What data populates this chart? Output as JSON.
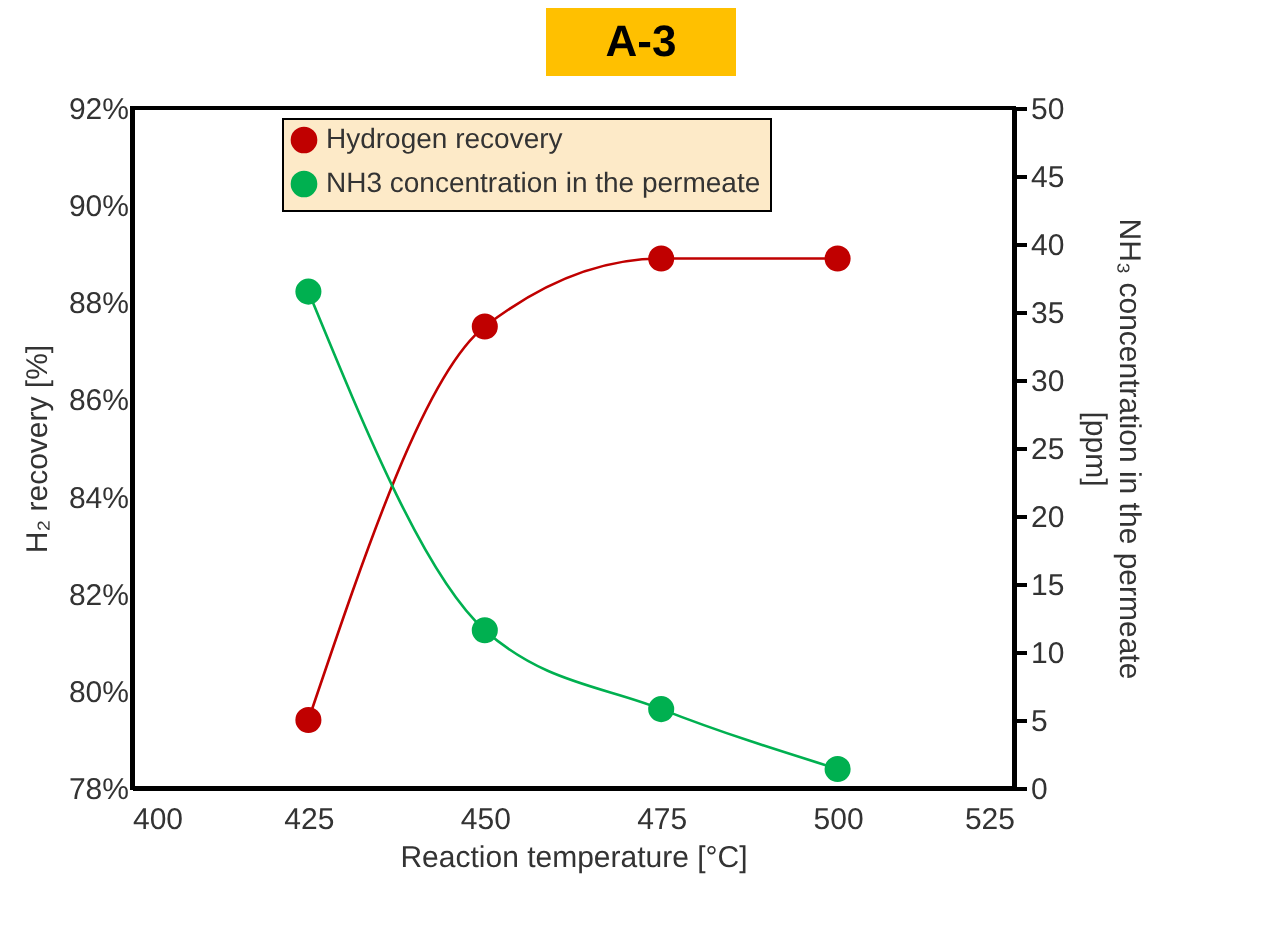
{
  "chart_data": {
    "type": "line",
    "title": "A-3",
    "xlabel": "Reaction temperature [°C]",
    "ylabel": "H₂ recovery [%]",
    "y2label": "NH₃ concentration in the permeate [ppm]",
    "x": [
      425,
      450,
      475,
      500
    ],
    "series": [
      {
        "name": "Hydrogen recovery",
        "color": "#c00000",
        "values": [
          79.4,
          87.5,
          88.9,
          88.9
        ]
      },
      {
        "name": "NH3 concentration in the permeate",
        "color": "#00b050",
        "values": [
          36.5,
          11.6,
          5.8,
          1.4
        ],
        "axis": "y2"
      }
    ],
    "xlim": [
      400,
      525
    ],
    "xticks": [
      400,
      425,
      450,
      475,
      500,
      525
    ],
    "ylim": [
      78,
      92
    ],
    "yticks": [
      {
        "value": 78,
        "label": "78%"
      },
      {
        "value": 80,
        "label": "80%"
      },
      {
        "value": 82,
        "label": "82%"
      },
      {
        "value": 84,
        "label": "84%"
      },
      {
        "value": 86,
        "label": "86%"
      },
      {
        "value": 88,
        "label": "88%"
      },
      {
        "value": 90,
        "label": "90%"
      },
      {
        "value": 92,
        "label": "92%"
      }
    ],
    "y2lim": [
      0,
      50
    ],
    "y2ticks": [
      0,
      5,
      10,
      15,
      20,
      25,
      30,
      35,
      40,
      45,
      50
    ],
    "marker": "circle",
    "line_style": "solid",
    "grid": false,
    "legend": "top"
  }
}
